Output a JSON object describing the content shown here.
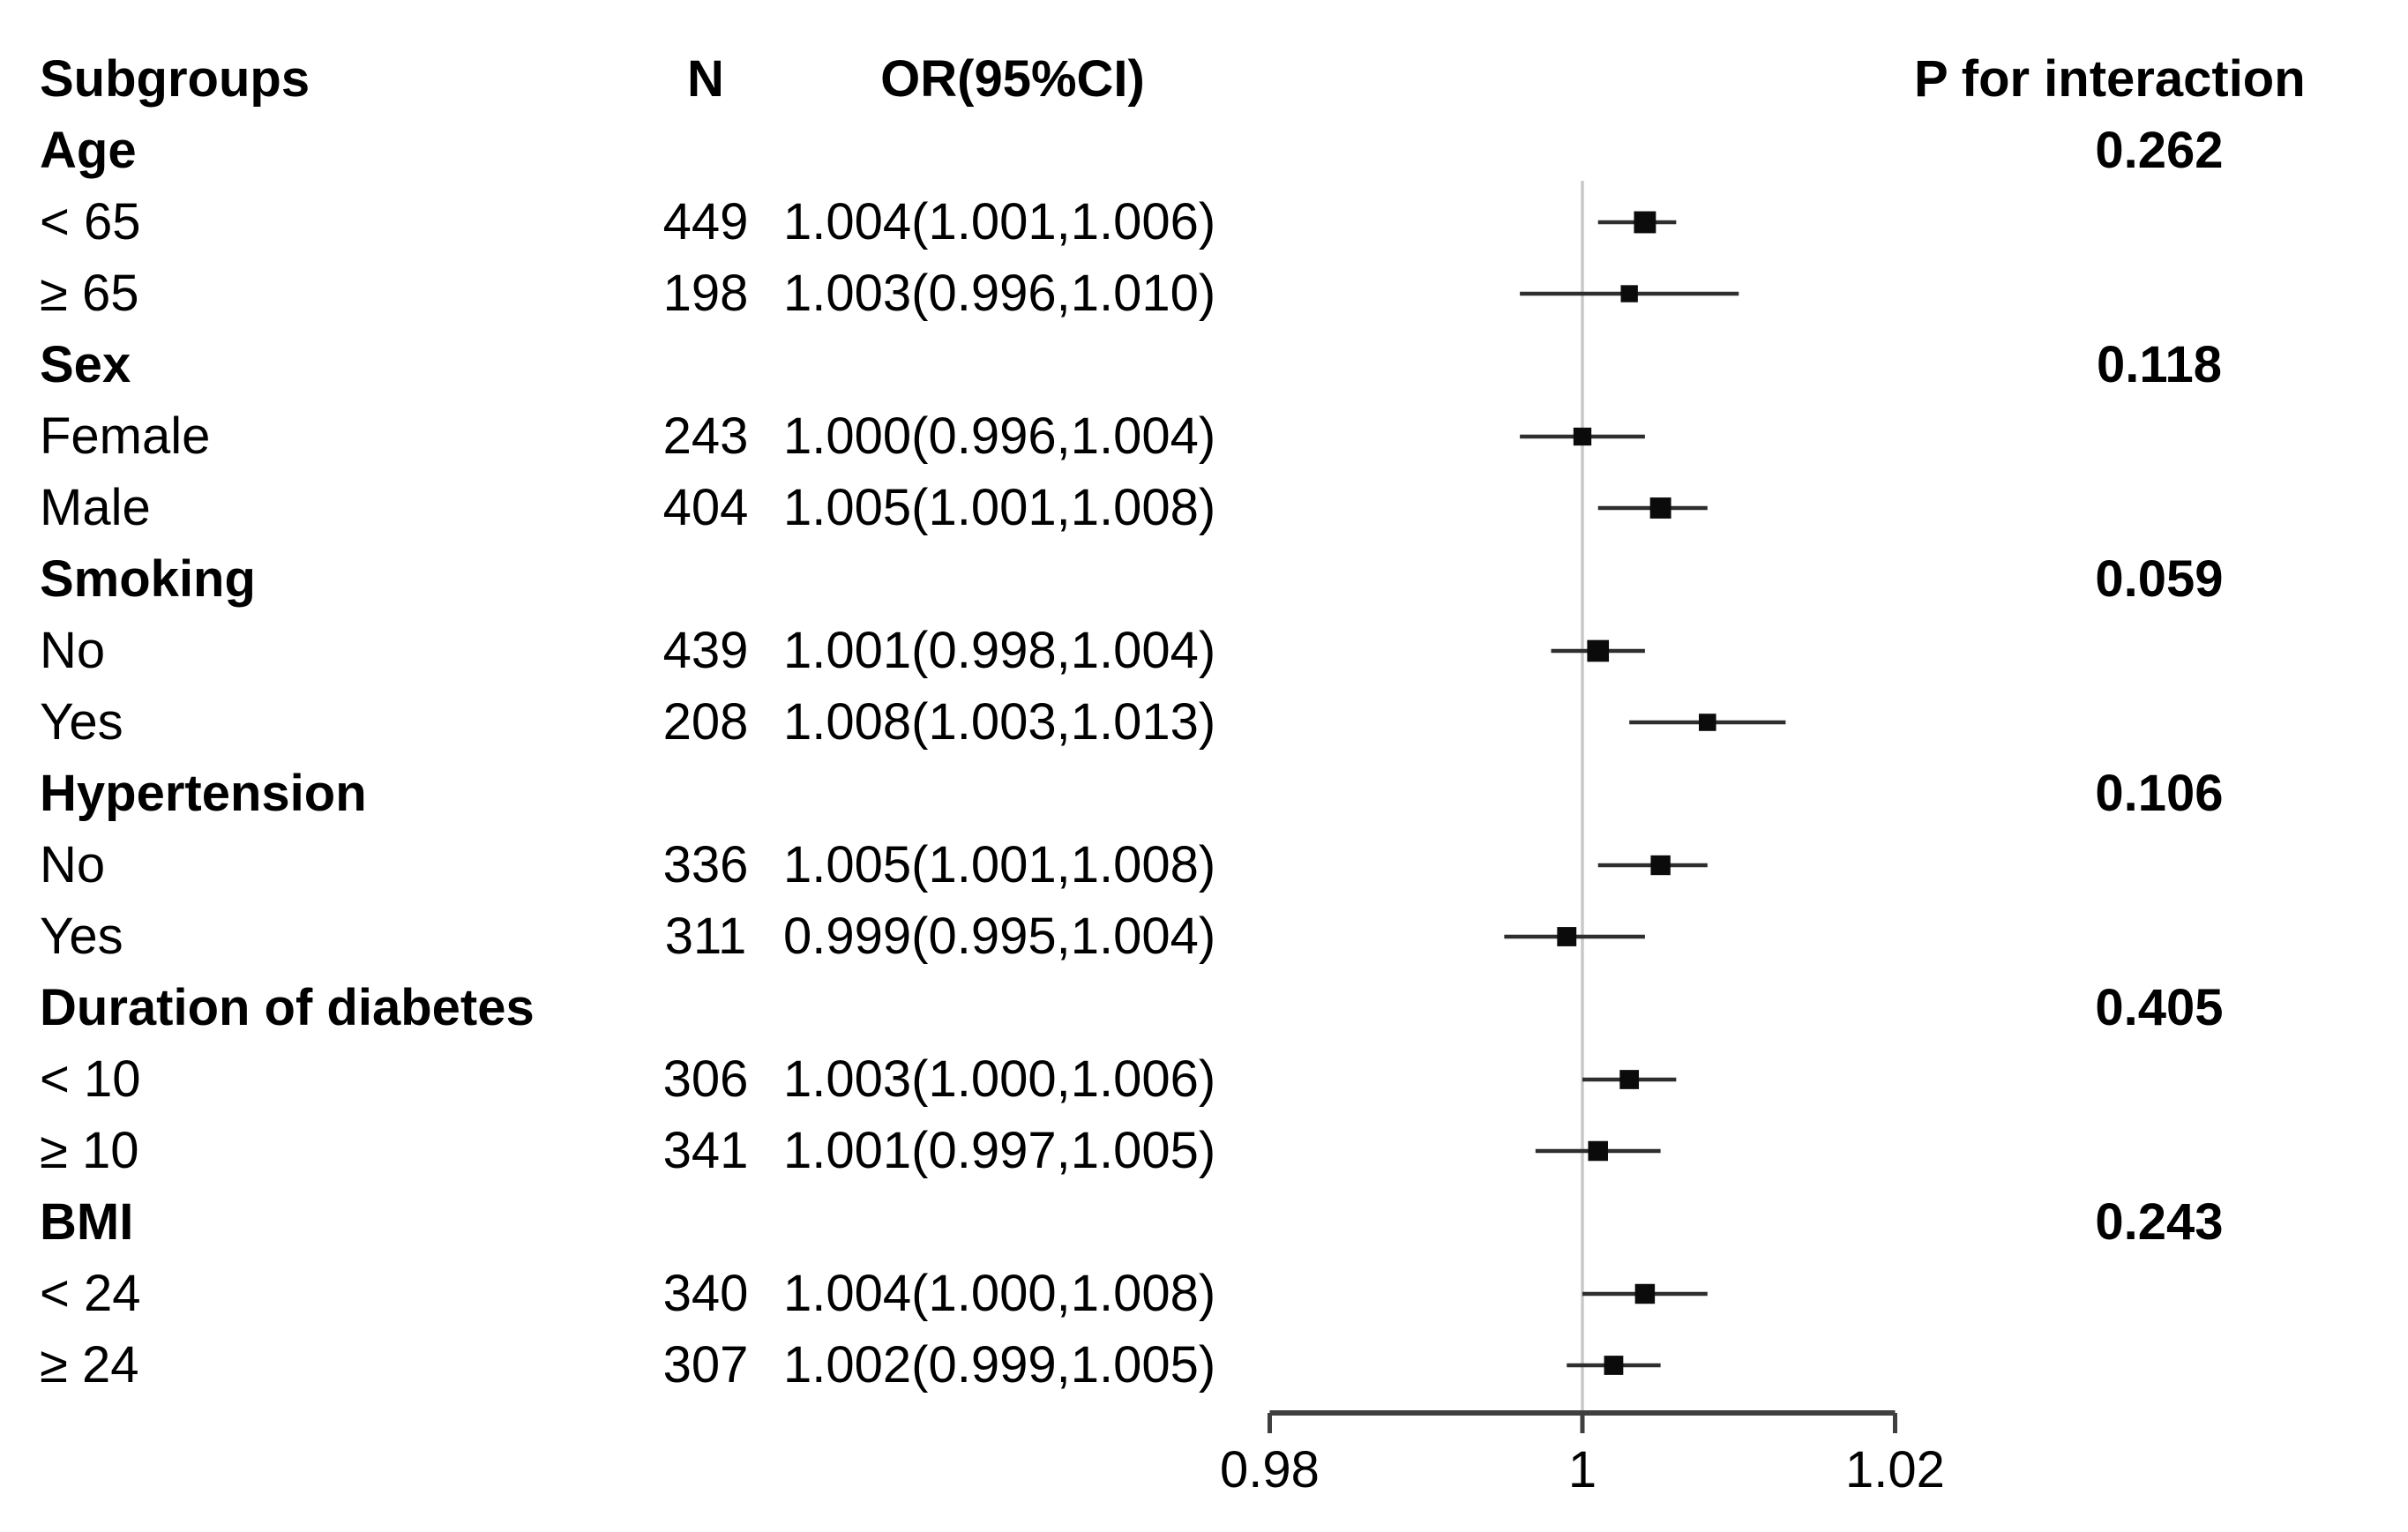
{
  "chart_data": {
    "type": "scatter",
    "variant": "forest-plot",
    "columns": {
      "subgroups": "Subgroups",
      "n": "N",
      "or_ci": "OR(95%CI)",
      "p_interaction": "P for interaction"
    },
    "axis": {
      "x_range": [
        0.98,
        1.02
      ],
      "x_tick_values": [
        0.98,
        1,
        1.02
      ],
      "x_tick_labels": [
        "0.98",
        "1",
        "1.02"
      ],
      "reference_value": 1,
      "grid": false
    },
    "rows": [
      {
        "type": "section",
        "label": "Age",
        "p_interaction": "0.262"
      },
      {
        "type": "data",
        "label": "< 65",
        "n": 449,
        "or_ci_text": "1.004(1.001,1.006)",
        "or": 1.004,
        "ci_low": 1.001,
        "ci_high": 1.006
      },
      {
        "type": "data",
        "label": "≥ 65",
        "n": 198,
        "or_ci_text": "1.003(0.996,1.010)",
        "or": 1.003,
        "ci_low": 0.996,
        "ci_high": 1.01
      },
      {
        "type": "section",
        "label": "Sex",
        "p_interaction": "0.118"
      },
      {
        "type": "data",
        "label": "Female",
        "n": 243,
        "or_ci_text": "1.000(0.996,1.004)",
        "or": 1.0,
        "ci_low": 0.996,
        "ci_high": 1.004
      },
      {
        "type": "data",
        "label": "Male",
        "n": 404,
        "or_ci_text": "1.005(1.001,1.008)",
        "or": 1.005,
        "ci_low": 1.001,
        "ci_high": 1.008
      },
      {
        "type": "section",
        "label": "Smoking",
        "p_interaction": "0.059"
      },
      {
        "type": "data",
        "label": "No",
        "n": 439,
        "or_ci_text": "1.001(0.998,1.004)",
        "or": 1.001,
        "ci_low": 0.998,
        "ci_high": 1.004
      },
      {
        "type": "data",
        "label": "Yes",
        "n": 208,
        "or_ci_text": "1.008(1.003,1.013)",
        "or": 1.008,
        "ci_low": 1.003,
        "ci_high": 1.013
      },
      {
        "type": "section",
        "label": "Hypertension",
        "p_interaction": "0.106"
      },
      {
        "type": "data",
        "label": "No",
        "n": 336,
        "or_ci_text": "1.005(1.001,1.008)",
        "or": 1.005,
        "ci_low": 1.001,
        "ci_high": 1.008
      },
      {
        "type": "data",
        "label": "Yes",
        "n": 311,
        "or_ci_text": "0.999(0.995,1.004)",
        "or": 0.999,
        "ci_low": 0.995,
        "ci_high": 1.004
      },
      {
        "type": "section",
        "label": "Duration of diabetes",
        "p_interaction": "0.405"
      },
      {
        "type": "data",
        "label": "< 10",
        "n": 306,
        "or_ci_text": "1.003(1.000,1.006)",
        "or": 1.003,
        "ci_low": 1.0,
        "ci_high": 1.006
      },
      {
        "type": "data",
        "label": "≥ 10",
        "n": 341,
        "or_ci_text": "1.001(0.997,1.005)",
        "or": 1.001,
        "ci_low": 0.997,
        "ci_high": 1.005
      },
      {
        "type": "section",
        "label": "BMI",
        "p_interaction": "0.243"
      },
      {
        "type": "data",
        "label": "< 24",
        "n": 340,
        "or_ci_text": "1.004(1.000,1.008)",
        "or": 1.004,
        "ci_low": 1.0,
        "ci_high": 1.008
      },
      {
        "type": "data",
        "label": "≥ 24",
        "n": 307,
        "or_ci_text": "1.002(0.999,1.005)",
        "or": 1.002,
        "ci_low": 0.999,
        "ci_high": 1.005
      }
    ],
    "colors": {
      "background": "#ffffff",
      "text": "#000000",
      "marker": "#0b0b0b",
      "ci_line": "#2e2e2e",
      "reference_line": "#c9c9c9",
      "axis_line": "#3f3f3f"
    }
  }
}
